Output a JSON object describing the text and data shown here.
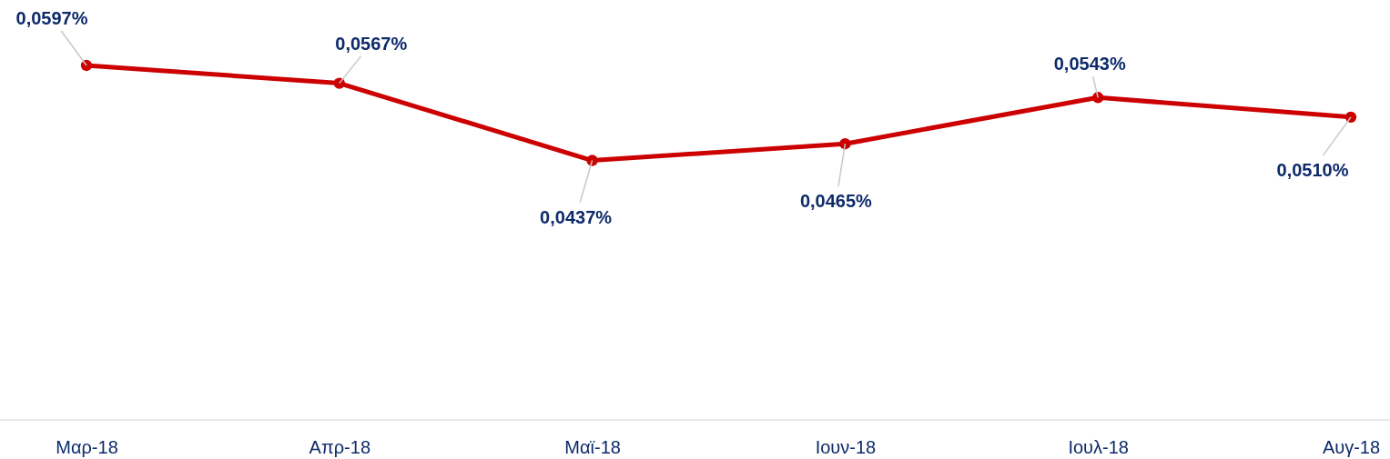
{
  "chart_data": {
    "type": "line",
    "categories": [
      "Μαρ-18",
      "Απρ-18",
      "Μαϊ-18",
      "Ιουν-18",
      "Ιουλ-18",
      "Αυγ-18"
    ],
    "series": [
      {
        "color": "#cc0000",
        "values": [
          0.0597,
          0.0567,
          0.0437,
          0.0465,
          0.0543,
          0.051
        ],
        "value_labels": [
          "0,0597%",
          "0,0567%",
          "0,0437%",
          "0,0465%",
          "0,0543%",
          "0,0510%"
        ]
      }
    ],
    "tick_labels": "x",
    "marker": "circle",
    "line_style": "solid"
  }
}
